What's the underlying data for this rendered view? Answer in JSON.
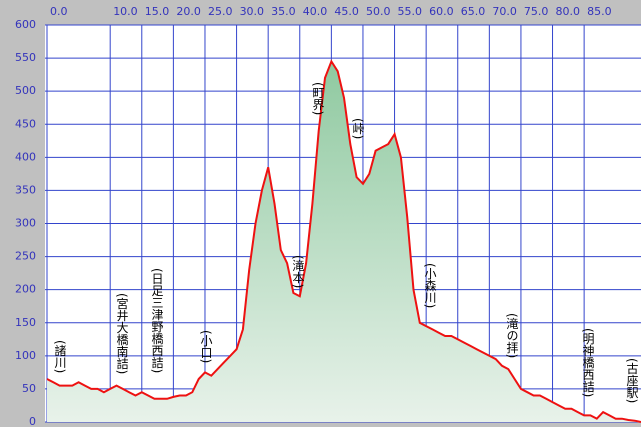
{
  "chart_data": {
    "type": "area",
    "x": [
      0,
      1,
      2,
      3,
      4,
      5,
      6,
      7,
      8,
      9,
      10,
      11,
      12,
      13,
      14,
      15,
      16,
      17,
      18,
      19,
      20,
      21,
      22,
      23,
      24,
      25,
      26,
      27,
      28,
      29,
      30,
      31,
      32,
      33,
      34,
      35,
      36,
      37,
      38,
      39,
      40,
      41,
      42,
      43,
      44,
      45,
      46,
      47,
      48,
      49,
      50,
      51,
      52,
      53,
      54,
      55,
      56,
      57,
      58,
      59,
      60,
      61,
      62,
      63,
      64,
      65,
      66,
      67,
      68,
      69,
      70,
      71,
      72,
      73,
      74,
      75,
      76,
      77,
      78,
      79,
      80,
      81,
      82,
      83,
      84,
      85,
      86,
      87,
      88,
      89,
      90,
      91,
      92,
      93,
      94
    ],
    "series": [
      {
        "color": "#ee1111",
        "values": [
          65,
          60,
          55,
          55,
          55,
          60,
          55,
          50,
          50,
          45,
          50,
          55,
          50,
          45,
          40,
          45,
          40,
          35,
          35,
          35,
          38,
          40,
          40,
          45,
          65,
          75,
          70,
          80,
          90,
          100,
          110,
          140,
          230,
          300,
          350,
          385,
          330,
          260,
          240,
          195,
          190,
          240,
          330,
          440,
          520,
          545,
          530,
          490,
          420,
          370,
          360,
          375,
          410,
          415,
          420,
          435,
          400,
          310,
          200,
          150,
          145,
          140,
          135,
          130,
          130,
          125,
          120,
          115,
          110,
          105,
          100,
          95,
          85,
          80,
          65,
          50,
          45,
          40,
          40,
          35,
          30,
          25,
          20,
          20,
          15,
          10,
          10,
          5,
          15,
          10,
          5,
          5,
          3,
          2,
          0
        ]
      }
    ],
    "xlim": [
      0,
      94
    ],
    "ylim": [
      0,
      600
    ],
    "xticks": [
      {
        "value": 0,
        "label": "0.0"
      },
      {
        "value": 10,
        "label": "10.0"
      },
      {
        "value": 15,
        "label": "15.0"
      },
      {
        "value": 20,
        "label": "20.0"
      },
      {
        "value": 25,
        "label": "25.0"
      },
      {
        "value": 30,
        "label": "30.0"
      },
      {
        "value": 35,
        "label": "35.0"
      },
      {
        "value": 40,
        "label": "40.0"
      },
      {
        "value": 45,
        "label": "45.0"
      },
      {
        "value": 50,
        "label": "50.0"
      },
      {
        "value": 55,
        "label": "55.0"
      },
      {
        "value": 60,
        "label": "60.0"
      },
      {
        "value": 65,
        "label": "65.0"
      },
      {
        "value": 70,
        "label": "70.0"
      },
      {
        "value": 75,
        "label": "75.0"
      },
      {
        "value": 80,
        "label": "80.0"
      },
      {
        "value": 85,
        "label": "85.0"
      }
    ],
    "yticks": [
      0,
      50,
      100,
      150,
      200,
      250,
      300,
      350,
      400,
      450,
      500,
      550,
      600
    ],
    "grid": true,
    "annotations": [
      "(諸川)",
      "(宮井大橋南詰)",
      "(日足三津野橋西詰)",
      "(小口)",
      "(滝本)",
      "(町界)",
      "(峠)",
      "(小森川)",
      "(滝の拝)",
      "(明神橋西詰)",
      "(古座駅)"
    ]
  }
}
